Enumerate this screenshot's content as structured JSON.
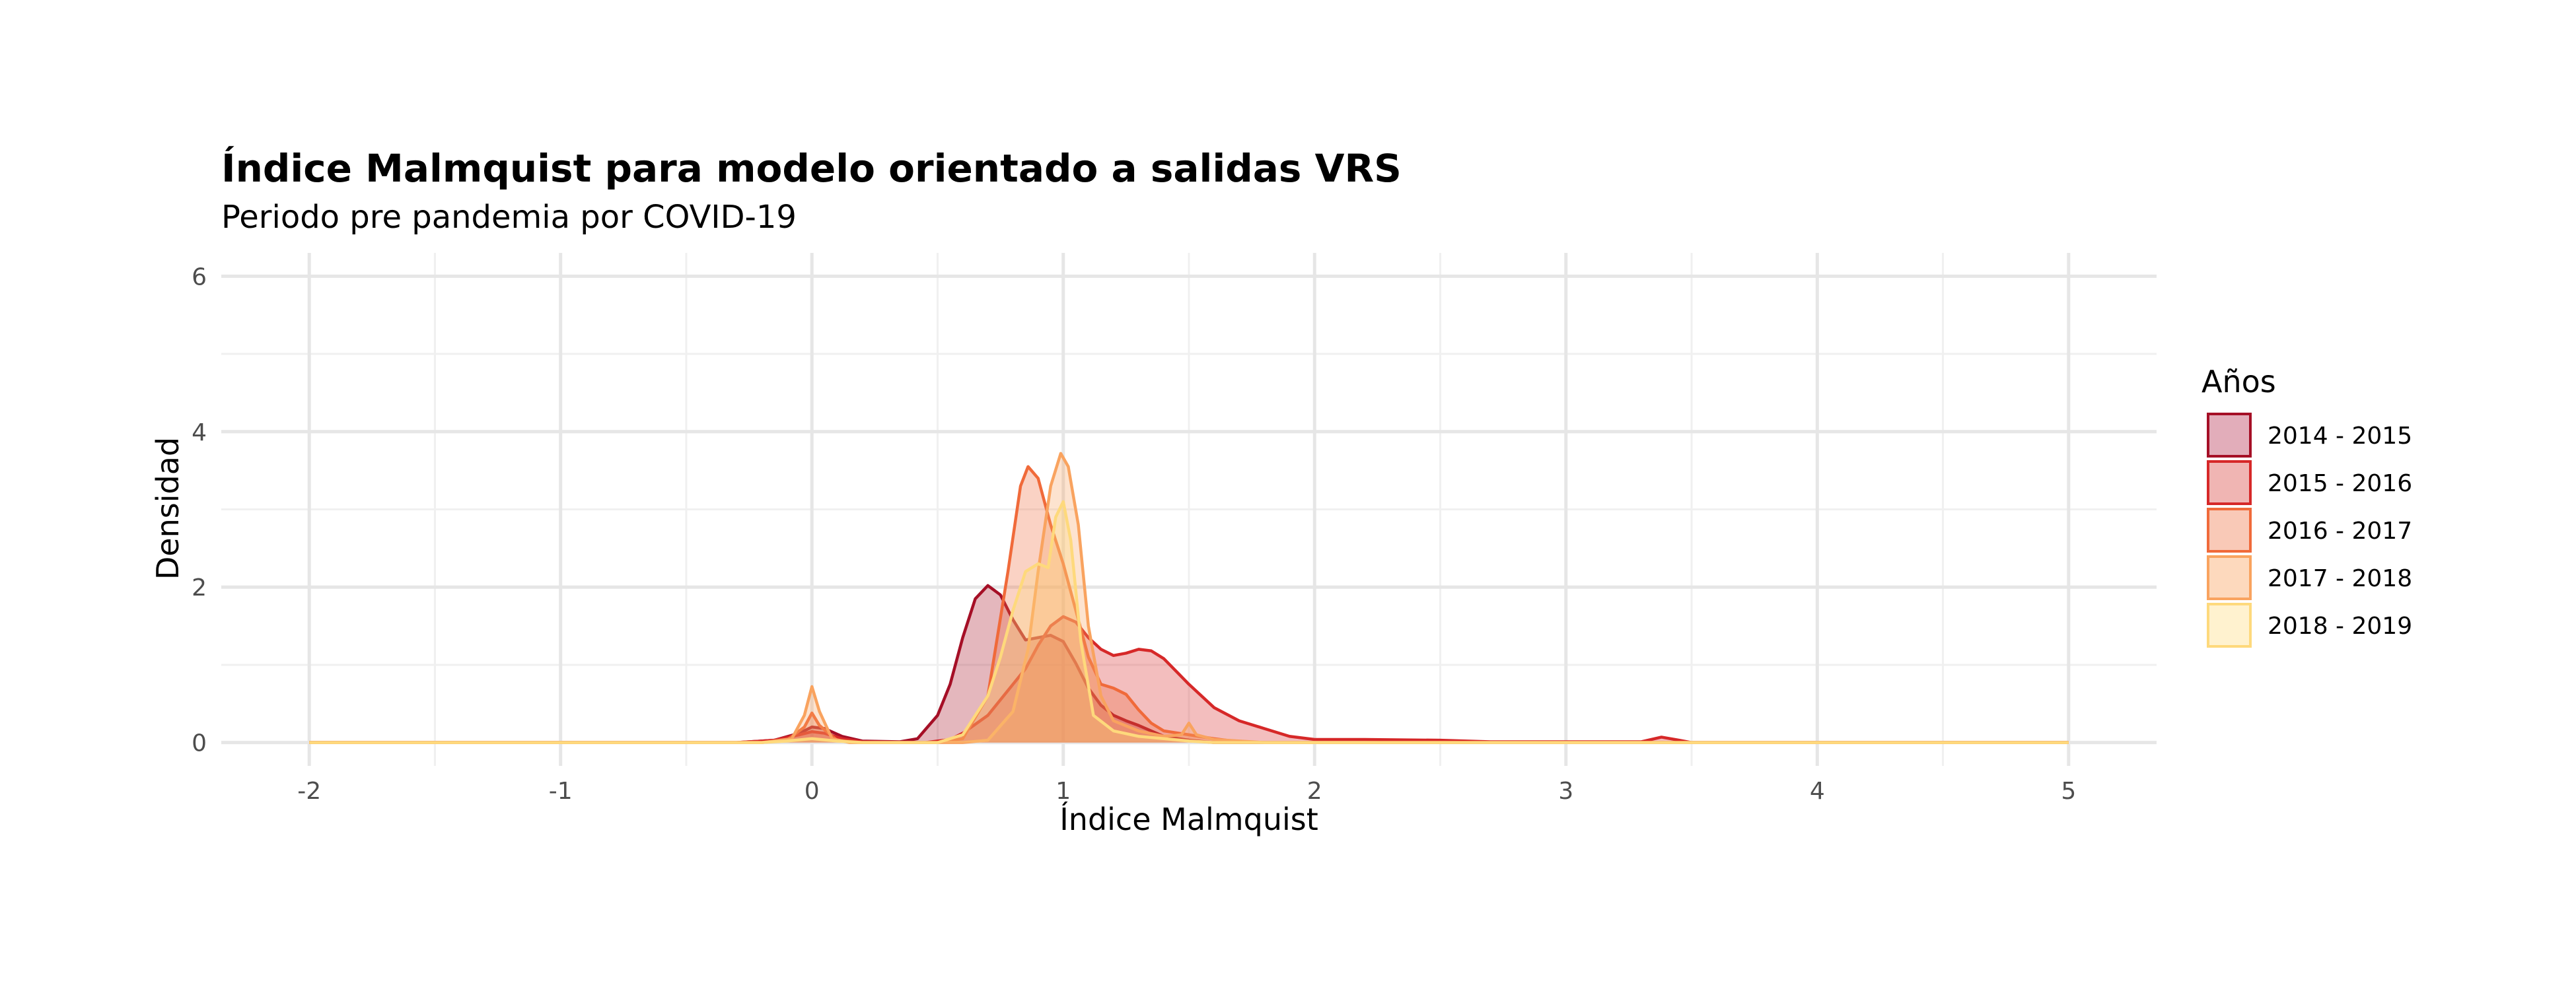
{
  "chart_data": {
    "type": "area",
    "title": "Índice Malmquist para modelo orientado a salidas VRS",
    "subtitle": "Periodo pre pandemia por COVID-19",
    "xlabel": "Índice Malmquist",
    "ylabel": "Densidad",
    "xlim": [
      -2.35,
      5.35
    ],
    "ylim": [
      -0.3,
      6.3
    ],
    "x_ticks": [
      -2,
      -1,
      0,
      1,
      2,
      3,
      4,
      5
    ],
    "x_tick_labels": [
      "-2",
      "-1",
      "0",
      "1",
      "2",
      "3",
      "4",
      "5"
    ],
    "y_ticks": [
      0,
      2,
      4,
      6
    ],
    "y_tick_labels": [
      "0",
      "2",
      "4",
      "6"
    ],
    "grid": true,
    "legend": {
      "title": "Años",
      "position": "right"
    },
    "series": [
      {
        "name": "2014 - 2015",
        "color": "#a50f26",
        "fill": "#e2adba",
        "points": [
          [
            -2,
            0
          ],
          [
            -0.3,
            0
          ],
          [
            -0.15,
            0.03
          ],
          [
            -0.05,
            0.12
          ],
          [
            0,
            0.2
          ],
          [
            0.05,
            0.18
          ],
          [
            0.12,
            0.08
          ],
          [
            0.2,
            0.02
          ],
          [
            0.35,
            0.01
          ],
          [
            0.42,
            0.05
          ],
          [
            0.5,
            0.35
          ],
          [
            0.55,
            0.75
          ],
          [
            0.6,
            1.35
          ],
          [
            0.65,
            1.85
          ],
          [
            0.7,
            2.02
          ],
          [
            0.75,
            1.9
          ],
          [
            0.8,
            1.58
          ],
          [
            0.85,
            1.32
          ],
          [
            0.9,
            1.35
          ],
          [
            0.95,
            1.38
          ],
          [
            1,
            1.3
          ],
          [
            1.05,
            1.02
          ],
          [
            1.1,
            0.7
          ],
          [
            1.15,
            0.48
          ],
          [
            1.2,
            0.35
          ],
          [
            1.25,
            0.28
          ],
          [
            1.3,
            0.22
          ],
          [
            1.35,
            0.15
          ],
          [
            1.4,
            0.08
          ],
          [
            1.5,
            0.03
          ],
          [
            1.6,
            0
          ],
          [
            5,
            0
          ]
        ]
      },
      {
        "name": "2015 - 2016",
        "color": "#d62828",
        "fill": "#f0b5b3",
        "points": [
          [
            -2,
            0
          ],
          [
            -0.3,
            0
          ],
          [
            -0.15,
            0.03
          ],
          [
            -0.05,
            0.1
          ],
          [
            0,
            0.14
          ],
          [
            0.05,
            0.12
          ],
          [
            0.12,
            0.05
          ],
          [
            0.2,
            0.01
          ],
          [
            0.45,
            0
          ],
          [
            0.55,
            0.04
          ],
          [
            0.6,
            0.12
          ],
          [
            0.7,
            0.35
          ],
          [
            0.8,
            0.75
          ],
          [
            0.85,
            0.95
          ],
          [
            0.9,
            1.25
          ],
          [
            0.95,
            1.5
          ],
          [
            1,
            1.62
          ],
          [
            1.05,
            1.55
          ],
          [
            1.1,
            1.35
          ],
          [
            1.15,
            1.2
          ],
          [
            1.2,
            1.12
          ],
          [
            1.25,
            1.15
          ],
          [
            1.3,
            1.2
          ],
          [
            1.35,
            1.18
          ],
          [
            1.4,
            1.08
          ],
          [
            1.5,
            0.75
          ],
          [
            1.6,
            0.45
          ],
          [
            1.7,
            0.28
          ],
          [
            1.8,
            0.18
          ],
          [
            1.9,
            0.08
          ],
          [
            2,
            0.04
          ],
          [
            2.2,
            0.04
          ],
          [
            2.5,
            0.03
          ],
          [
            2.7,
            0.01
          ],
          [
            3.3,
            0.01
          ],
          [
            3.38,
            0.07
          ],
          [
            3.45,
            0.03
          ],
          [
            3.5,
            0
          ],
          [
            5,
            0
          ]
        ]
      },
      {
        "name": "2016 - 2017",
        "color": "#f06a3a",
        "fill": "#f9c9b7",
        "points": [
          [
            -2,
            0
          ],
          [
            -0.2,
            0
          ],
          [
            -0.1,
            0.03
          ],
          [
            -0.03,
            0.2
          ],
          [
            0,
            0.38
          ],
          [
            0.03,
            0.22
          ],
          [
            0.1,
            0.03
          ],
          [
            0.2,
            0
          ],
          [
            0.5,
            0
          ],
          [
            0.6,
            0.05
          ],
          [
            0.7,
            0.6
          ],
          [
            0.78,
            2.2
          ],
          [
            0.83,
            3.3
          ],
          [
            0.86,
            3.55
          ],
          [
            0.9,
            3.4
          ],
          [
            0.95,
            2.8
          ],
          [
            1,
            2.3
          ],
          [
            1.05,
            1.7
          ],
          [
            1.1,
            1.1
          ],
          [
            1.15,
            0.75
          ],
          [
            1.2,
            0.7
          ],
          [
            1.25,
            0.62
          ],
          [
            1.3,
            0.42
          ],
          [
            1.35,
            0.25
          ],
          [
            1.4,
            0.15
          ],
          [
            1.5,
            0.1
          ],
          [
            1.6,
            0.05
          ],
          [
            1.7,
            0.01
          ],
          [
            1.8,
            0
          ],
          [
            5,
            0
          ]
        ]
      },
      {
        "name": "2017 - 2018",
        "color": "#f9a35f",
        "fill": "#fdd9bd",
        "points": [
          [
            -2,
            0
          ],
          [
            -0.2,
            0
          ],
          [
            -0.08,
            0.05
          ],
          [
            -0.03,
            0.35
          ],
          [
            0,
            0.72
          ],
          [
            0.03,
            0.4
          ],
          [
            0.08,
            0.05
          ],
          [
            0.15,
            0
          ],
          [
            0.6,
            0
          ],
          [
            0.7,
            0.03
          ],
          [
            0.8,
            0.4
          ],
          [
            0.86,
            1.2
          ],
          [
            0.9,
            2.2
          ],
          [
            0.95,
            3.3
          ],
          [
            0.99,
            3.72
          ],
          [
            1.02,
            3.55
          ],
          [
            1.06,
            2.8
          ],
          [
            1.1,
            1.5
          ],
          [
            1.15,
            0.6
          ],
          [
            1.2,
            0.28
          ],
          [
            1.3,
            0.15
          ],
          [
            1.4,
            0.08
          ],
          [
            1.47,
            0.1
          ],
          [
            1.5,
            0.25
          ],
          [
            1.53,
            0.1
          ],
          [
            1.6,
            0.04
          ],
          [
            1.8,
            0
          ],
          [
            5,
            0
          ]
        ]
      },
      {
        "name": "2018 - 2019",
        "color": "#fed97c",
        "fill": "#fff2cf",
        "points": [
          [
            -2,
            0
          ],
          [
            -0.2,
            0
          ],
          [
            -0.1,
            0.02
          ],
          [
            0,
            0.05
          ],
          [
            0.1,
            0.02
          ],
          [
            0.2,
            0
          ],
          [
            0.5,
            0
          ],
          [
            0.6,
            0.1
          ],
          [
            0.7,
            0.6
          ],
          [
            0.75,
            1.1
          ],
          [
            0.8,
            1.7
          ],
          [
            0.85,
            2.2
          ],
          [
            0.9,
            2.3
          ],
          [
            0.94,
            2.25
          ],
          [
            0.97,
            2.9
          ],
          [
            1,
            3.1
          ],
          [
            1.03,
            2.6
          ],
          [
            1.07,
            1.3
          ],
          [
            1.12,
            0.35
          ],
          [
            1.2,
            0.15
          ],
          [
            1.3,
            0.08
          ],
          [
            1.4,
            0.05
          ],
          [
            1.5,
            0.02
          ],
          [
            1.6,
            0
          ],
          [
            5,
            0
          ]
        ]
      }
    ]
  }
}
